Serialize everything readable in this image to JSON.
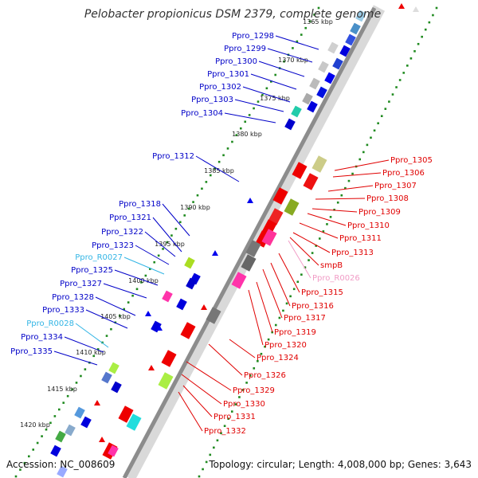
{
  "title": "Pelobacter propionicus DSM 2379, complete genome",
  "footer": {
    "accession": "Accession: NC_008609",
    "topology": "Topology: circular; Length: 4,008,000 bp; Genes: 3,643"
  },
  "colors": {
    "backbone": "#8c8c8c",
    "forward_label": "#0000c8",
    "reverse_label": "#e00000",
    "rna_forward_label": "#33b5e5",
    "rna_reverse_label": "#f19cc6",
    "dots": "#1f8a1f"
  },
  "ticks": [
    "1365 kbp",
    "1370 kbp",
    "1375 kbp",
    "1380 kbp",
    "1385 kbp",
    "1390 kbp",
    "1395 kbp",
    "1400 kbp",
    "1405 kbp",
    "1410 kbp",
    "1415 kbp",
    "1420 kbp"
  ],
  "left_genes": [
    {
      "label": "Ppro_1298",
      "kind": "cds"
    },
    {
      "label": "Ppro_1299",
      "kind": "cds"
    },
    {
      "label": "Ppro_1300",
      "kind": "cds"
    },
    {
      "label": "Ppro_1301",
      "kind": "cds"
    },
    {
      "label": "Ppro_1302",
      "kind": "cds"
    },
    {
      "label": "Ppro_1303",
      "kind": "cds"
    },
    {
      "label": "Ppro_1304",
      "kind": "cds"
    },
    {
      "label": "Ppro_1312",
      "kind": "cds"
    },
    {
      "label": "Ppro_1318",
      "kind": "cds"
    },
    {
      "label": "Ppro_1321",
      "kind": "cds"
    },
    {
      "label": "Ppro_1322",
      "kind": "cds"
    },
    {
      "label": "Ppro_1323",
      "kind": "cds"
    },
    {
      "label": "Ppro_R0027",
      "kind": "rna"
    },
    {
      "label": "Ppro_1325",
      "kind": "cds"
    },
    {
      "label": "Ppro_1327",
      "kind": "cds"
    },
    {
      "label": "Ppro_1328",
      "kind": "cds"
    },
    {
      "label": "Ppro_1333",
      "kind": "cds"
    },
    {
      "label": "Ppro_R0028",
      "kind": "rna"
    },
    {
      "label": "Ppro_1334",
      "kind": "cds"
    },
    {
      "label": "Ppro_1335",
      "kind": "cds"
    }
  ],
  "right_genes": [
    {
      "label": "Ppro_1305",
      "kind": "cds"
    },
    {
      "label": "Ppro_1306",
      "kind": "cds"
    },
    {
      "label": "Ppro_1307",
      "kind": "cds"
    },
    {
      "label": "Ppro_1308",
      "kind": "cds"
    },
    {
      "label": "Ppro_1309",
      "kind": "cds"
    },
    {
      "label": "Ppro_1310",
      "kind": "cds"
    },
    {
      "label": "Ppro_1311",
      "kind": "cds"
    },
    {
      "label": "Ppro_1313",
      "kind": "cds"
    },
    {
      "label": "smpB",
      "kind": "cds"
    },
    {
      "label": "Ppro_R0026",
      "kind": "rna"
    },
    {
      "label": "Ppro_1315",
      "kind": "cds"
    },
    {
      "label": "Ppro_1316",
      "kind": "cds"
    },
    {
      "label": "Ppro_1317",
      "kind": "cds"
    },
    {
      "label": "Ppro_1319",
      "kind": "cds"
    },
    {
      "label": "Ppro_1320",
      "kind": "cds"
    },
    {
      "label": "Ppro_1324",
      "kind": "cds"
    },
    {
      "label": "Ppro_1326",
      "kind": "cds"
    },
    {
      "label": "Ppro_1329",
      "kind": "cds"
    },
    {
      "label": "Ppro_1330",
      "kind": "cds"
    },
    {
      "label": "Ppro_1331",
      "kind": "cds"
    },
    {
      "label": "Ppro_1332",
      "kind": "cds"
    }
  ]
}
